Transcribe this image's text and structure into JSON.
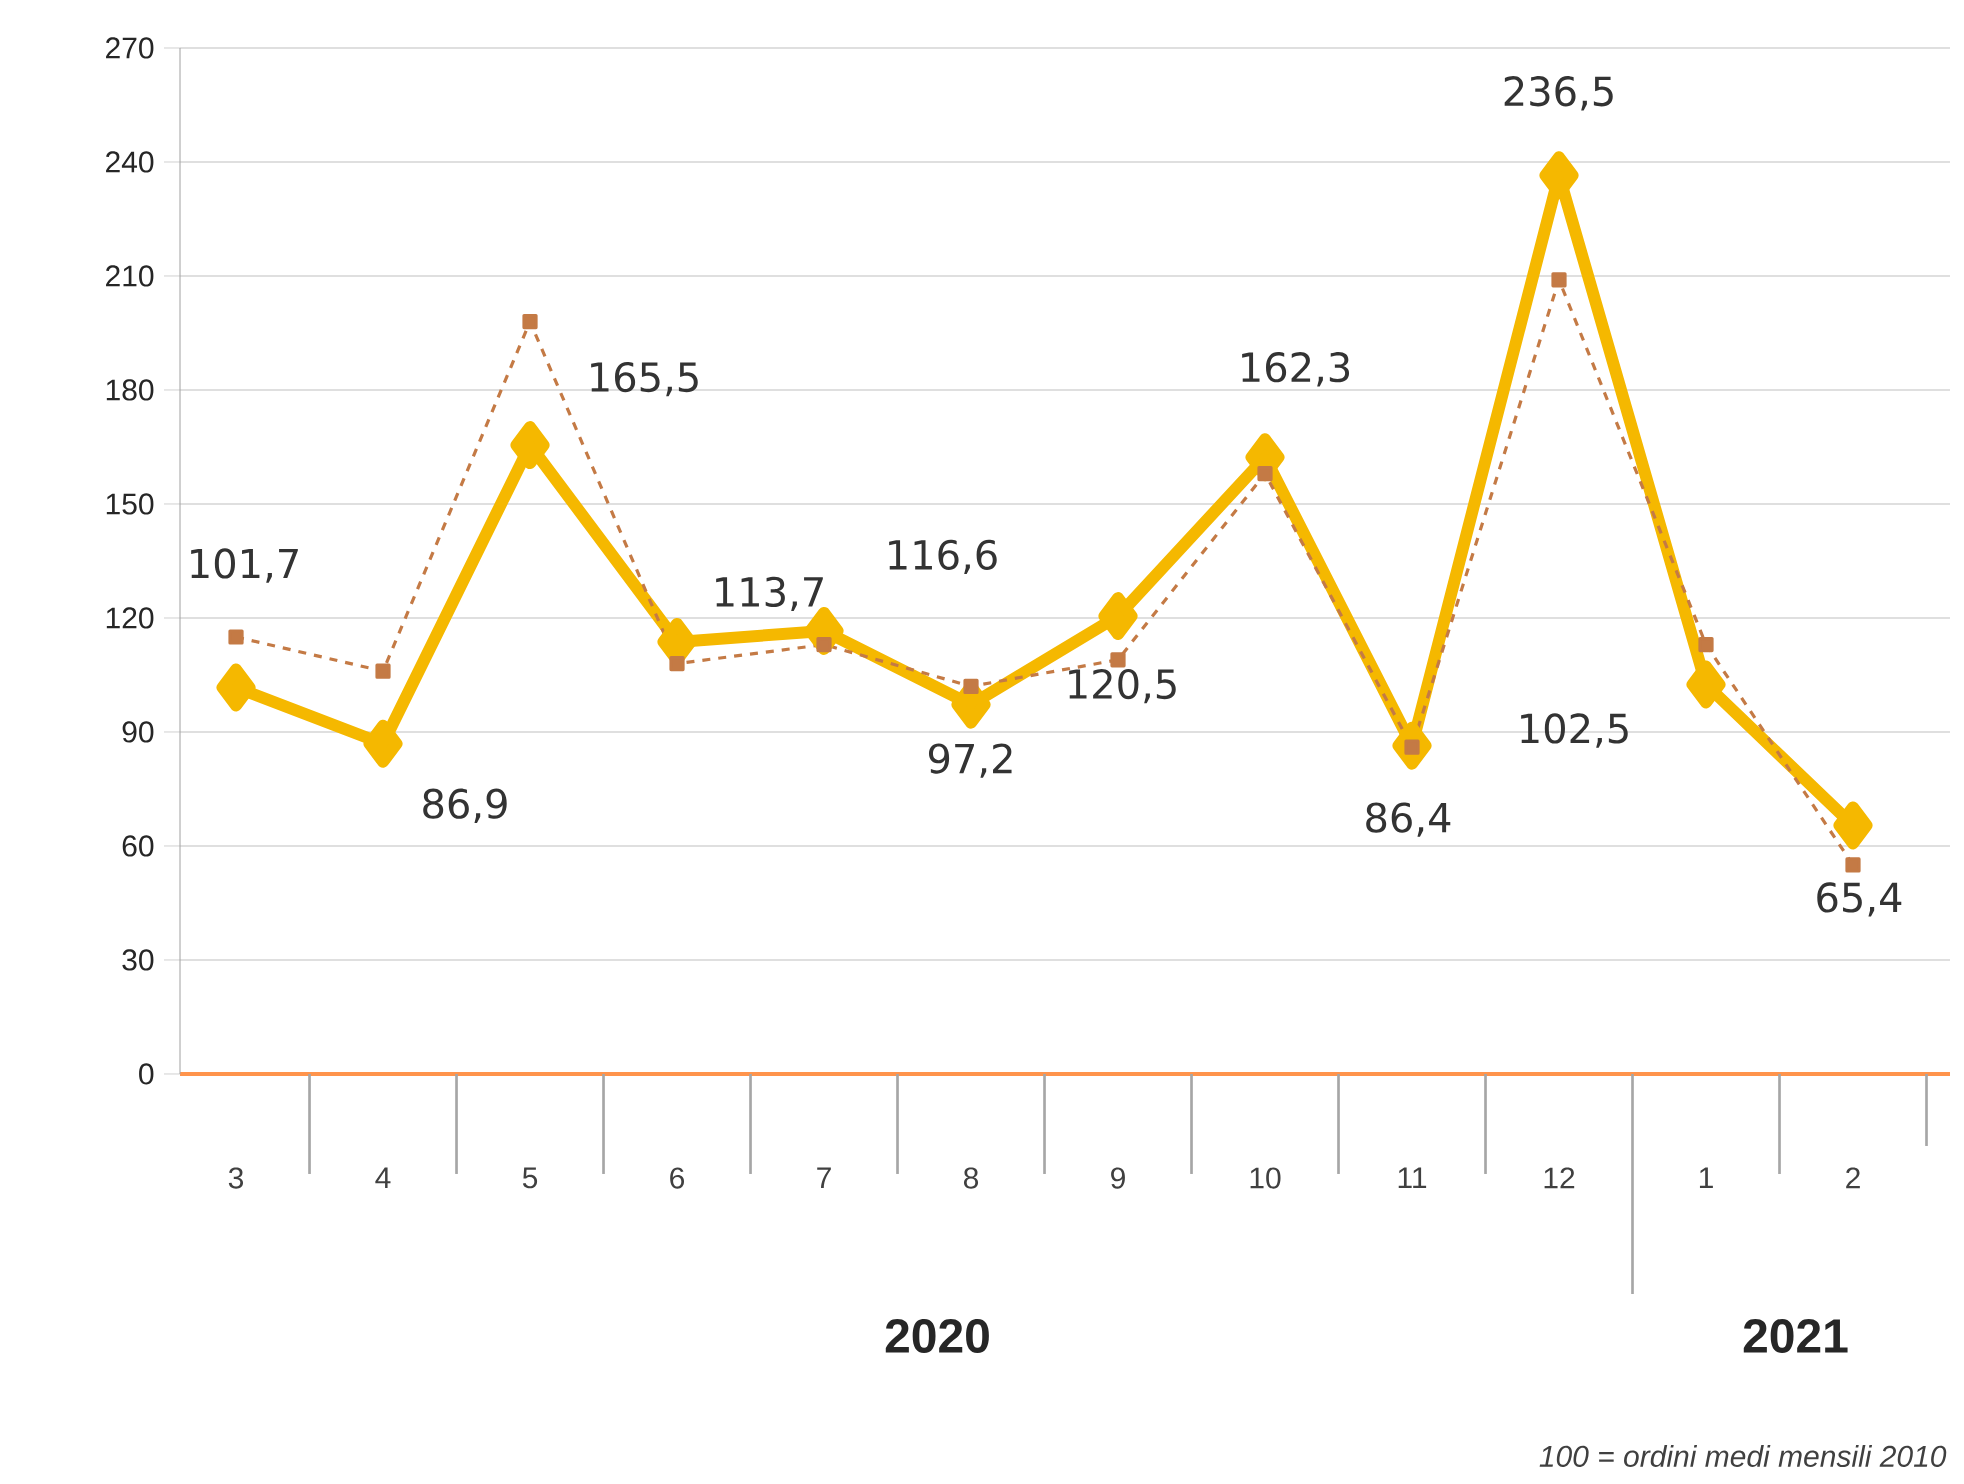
{
  "chart_data": {
    "type": "line",
    "categories": [
      "3",
      "4",
      "5",
      "6",
      "7",
      "8",
      "9",
      "10",
      "11",
      "12",
      "1",
      "2"
    ],
    "series": [
      {
        "color": "#c47a45",
        "line_style": "dashed",
        "marker": "square",
        "values": [
          115,
          106,
          198,
          108,
          113,
          102,
          109,
          158,
          86,
          209,
          113,
          55
        ]
      },
      {
        "color": "#f5b800",
        "line_style": "solid",
        "marker": "diamond",
        "values": [
          101.7,
          86.9,
          165.5,
          113.7,
          116.6,
          97.2,
          120.5,
          162.3,
          86.4,
          236.5,
          102.5,
          65.4
        ],
        "value_labels": [
          "101,7",
          "86,9",
          "165,5",
          "113,7",
          "116,6",
          "97,2",
          "120,5",
          "162,3",
          "86,4",
          "236,5",
          "102,5",
          "65,4"
        ]
      }
    ],
    "ylim": [
      0,
      270
    ],
    "yticks": [
      0,
      30,
      60,
      90,
      120,
      150,
      180,
      210,
      240,
      270
    ],
    "grid": "y",
    "annotations": [
      "2020",
      "2021",
      "100 = ordini medi mensili 2010"
    ]
  }
}
